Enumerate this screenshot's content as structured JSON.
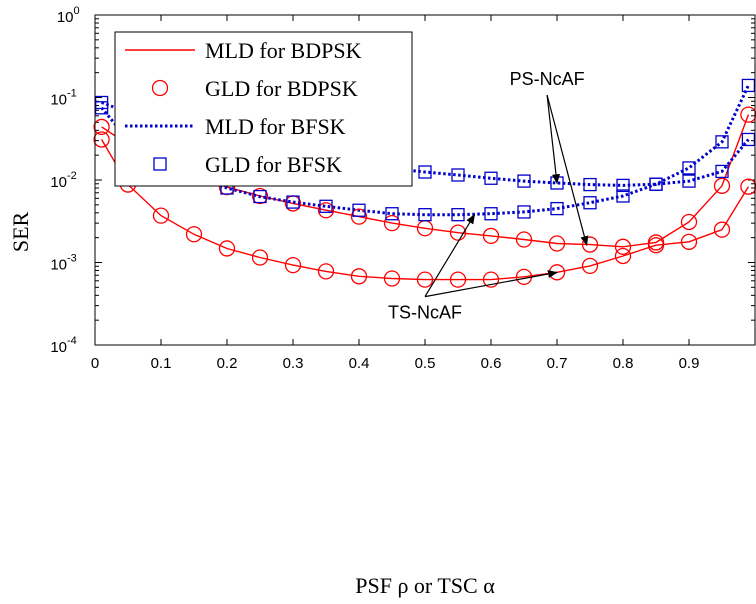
{
  "chart_data": {
    "type": "line",
    "xlabel": "PSF ρ or TSC α",
    "ylabel": "SER",
    "xlim": [
      0,
      1
    ],
    "ylim_exp": [
      -4,
      0
    ],
    "yscale": "log",
    "x_ticks": [
      "0",
      "0.1",
      "0.2",
      "0.3",
      "0.4",
      "0.5",
      "0.6",
      "0.7",
      "0.8",
      "0.9"
    ],
    "y_ticks": [
      {
        "base": "10",
        "exp": "0",
        "exponent": 0
      },
      {
        "base": "10",
        "exp": "-1",
        "exponent": -1
      },
      {
        "base": "10",
        "exp": "-2",
        "exponent": -2
      },
      {
        "base": "10",
        "exp": "-3",
        "exponent": -3
      },
      {
        "base": "10",
        "exp": "-4",
        "exponent": -4
      }
    ],
    "legend": {
      "position": "top-left",
      "entries": [
        {
          "label": "MLD for BDPSK",
          "color": "#ff0000",
          "style": "solid-line"
        },
        {
          "label": "GLD for BDPSK",
          "color": "#ff0000",
          "style": "circle-marker"
        },
        {
          "label": "MLD for BFSK",
          "color": "#0000cc",
          "style": "dotted-line"
        },
        {
          "label": "GLD for BFSK",
          "color": "#0000cc",
          "style": "square-marker"
        }
      ]
    },
    "x": [
      0.01,
      0.05,
      0.1,
      0.15,
      0.2,
      0.25,
      0.3,
      0.35,
      0.4,
      0.45,
      0.5,
      0.55,
      0.6,
      0.65,
      0.7,
      0.75,
      0.8,
      0.85,
      0.9,
      0.95,
      0.99
    ],
    "series": [
      {
        "group": "PS-NcAF",
        "modulation": "BDPSK",
        "color": "#ff0000",
        "values": [
          0.044,
          0.027,
          0.017,
          0.011,
          0.0082,
          0.0064,
          0.0052,
          0.0043,
          0.0036,
          0.003,
          0.0026,
          0.0023,
          0.0021,
          0.0019,
          0.0017,
          0.00165,
          0.00155,
          0.00175,
          0.0031,
          0.0085,
          0.062
        ]
      },
      {
        "group": "TS-NcAF",
        "modulation": "BDPSK",
        "color": "#ff0000",
        "values": [
          0.031,
          0.0088,
          0.0037,
          0.0022,
          0.00148,
          0.00115,
          0.00093,
          0.00078,
          0.00068,
          0.00064,
          0.00062,
          0.00062,
          0.00062,
          0.00067,
          0.00076,
          0.00091,
          0.0012,
          0.00162,
          0.00178,
          0.0025,
          0.0083
        ]
      },
      {
        "group": "PS-NcAF",
        "modulation": "BFSK",
        "color": "#0000cc",
        "values": [
          0.087,
          0.066,
          0.049,
          0.038,
          0.031,
          0.025,
          0.021,
          0.018,
          0.016,
          0.0138,
          0.0125,
          0.0115,
          0.0105,
          0.0097,
          0.0092,
          0.0088,
          0.0086,
          0.0089,
          0.0097,
          0.0127,
          0.031
        ]
      },
      {
        "group": "TS-NcAF",
        "modulation": "BFSK",
        "color": "#0000cc",
        "values": [
          0.075,
          0.031,
          0.016,
          0.011,
          0.008,
          0.0063,
          0.0054,
          0.0048,
          0.0043,
          0.0039,
          0.0038,
          0.0038,
          0.0039,
          0.0041,
          0.0045,
          0.0053,
          0.0064,
          0.0089,
          0.014,
          0.029,
          0.14
        ]
      }
    ],
    "annotations": [
      {
        "text": "PS-NcAF",
        "label_x": 0.685,
        "label_exp": -0.85,
        "targets": [
          {
            "x": 0.7,
            "exp": -2.04
          },
          {
            "x": 0.745,
            "exp": -2.79
          }
        ]
      },
      {
        "text": "TS-NcAF",
        "label_x": 0.5,
        "label_exp": -3.68,
        "targets": [
          {
            "x": 0.575,
            "exp": -2.42
          },
          {
            "x": 0.7,
            "exp": -3.12
          }
        ]
      }
    ]
  }
}
